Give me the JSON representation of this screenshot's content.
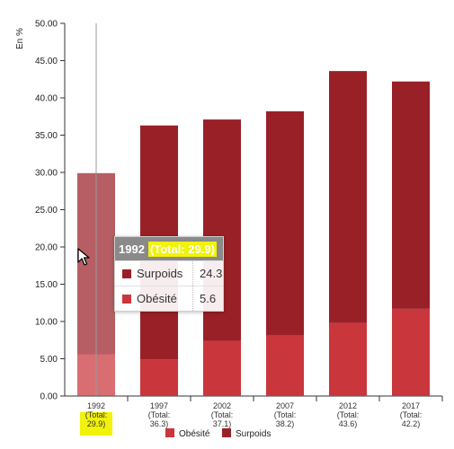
{
  "chart_data": {
    "type": "bar",
    "stacked": true,
    "ylabel": "En %",
    "ylim": [
      0,
      50
    ],
    "ytick_step": 5,
    "ytick_labels": [
      "0.00",
      "5.00",
      "10.00",
      "15.00",
      "20.00",
      "25.00",
      "30.00",
      "35.00",
      "40.00",
      "45.00",
      "50.00"
    ],
    "categories": [
      "1992",
      "1997",
      "2002",
      "2007",
      "2012",
      "2017"
    ],
    "category_totals": [
      "(Total:\n29.9)",
      "(Total:\n36.3)",
      "(Total:\n37.1)",
      "(Total:\n38.2)",
      "(Total:\n43.6)",
      "(Total:\n42.2)"
    ],
    "series": [
      {
        "name": "Obésité",
        "color": "#c9363b",
        "values": [
          5.6,
          4.9,
          7.4,
          8.1,
          9.8,
          11.7
        ]
      },
      {
        "name": "Surpoids",
        "color": "#9a2027",
        "values": [
          24.3,
          31.4,
          29.7,
          30.1,
          33.8,
          30.5
        ]
      }
    ],
    "highlight_category": "1992",
    "legend": {
      "position": "bottom",
      "items": [
        "Obésité",
        "Surpoids"
      ]
    }
  },
  "tooltip": {
    "year": "1992",
    "total": "(Total: 29.9)",
    "rows": [
      {
        "name": "Surpoids",
        "value": "24.3",
        "color": "#9a2027"
      },
      {
        "name": "Obésité",
        "value": "5.6",
        "color": "#c9363b"
      }
    ],
    "highlight_color": "#f2f20a"
  }
}
